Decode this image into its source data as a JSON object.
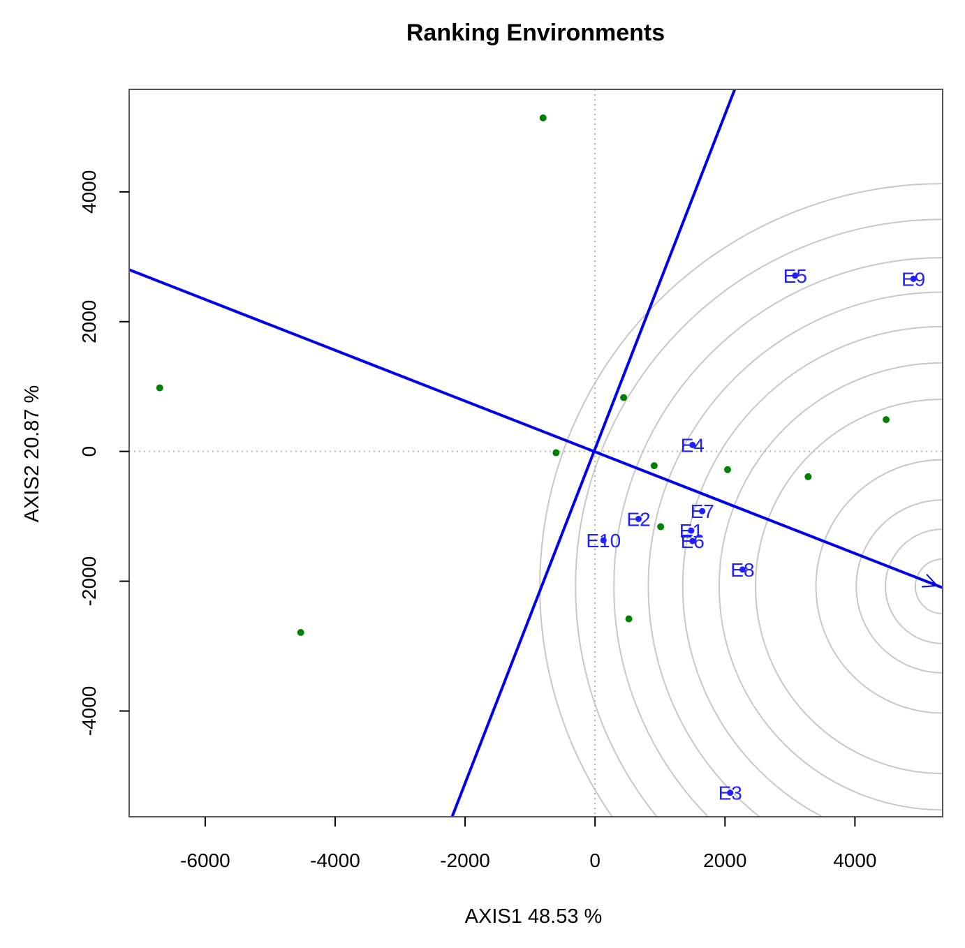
{
  "chart_data": {
    "type": "scatter",
    "title": "Ranking Environments",
    "xlabel": "AXIS1 48.53 %",
    "ylabel": "AXIS2 20.87 %",
    "xlim": [
      -7170,
      5350
    ],
    "ylim": [
      -5630,
      5580
    ],
    "xticks": [
      -6000,
      -4000,
      -2000,
      0,
      2000,
      4000
    ],
    "yticks": [
      -4000,
      -2000,
      0,
      2000,
      4000
    ],
    "tick_labels_x": [
      "-6000",
      "-4000",
      "-2000",
      "0",
      "2000",
      "4000"
    ],
    "tick_labels_y": [
      "-4000",
      "-2000",
      "0",
      "2000",
      "4000"
    ],
    "reference_lines": {
      "x": 0,
      "y": 0,
      "style": "dotted"
    },
    "grid": false,
    "environments": [
      {
        "label": "E1",
        "x": 1480,
        "y": -1220
      },
      {
        "label": "E2",
        "x": 670,
        "y": -1040
      },
      {
        "label": "E3",
        "x": 2080,
        "y": -5260
      },
      {
        "label": "E4",
        "x": 1500,
        "y": 100
      },
      {
        "label": "E5",
        "x": 3080,
        "y": 2710
      },
      {
        "label": "E6",
        "x": 1500,
        "y": -1380
      },
      {
        "label": "E7",
        "x": 1650,
        "y": -920
      },
      {
        "label": "E8",
        "x": 2270,
        "y": -1820
      },
      {
        "label": "E9",
        "x": 4900,
        "y": 2660
      },
      {
        "label": "E10",
        "x": 130,
        "y": -1370
      }
    ],
    "genotypes": [
      {
        "x": -800,
        "y": 5140
      },
      {
        "x": -6700,
        "y": 980
      },
      {
        "x": 440,
        "y": 830
      },
      {
        "x": -600,
        "y": -20
      },
      {
        "x": 910,
        "y": -220
      },
      {
        "x": 2040,
        "y": -280
      },
      {
        "x": 3280,
        "y": -390
      },
      {
        "x": 4480,
        "y": 490
      },
      {
        "x": 1010,
        "y": -1160
      },
      {
        "x": 520,
        "y": -2580
      },
      {
        "x": -4530,
        "y": -2790
      }
    ],
    "aec_axis": {
      "from": [
        -7170,
        2800
      ],
      "to": [
        5350,
        -2100
      ],
      "arrow": true
    },
    "aec_ordinate": {
      "from": [
        -2200,
        -5630
      ],
      "to": [
        2150,
        5580
      ]
    },
    "ideal_point": {
      "x": 5350,
      "y": -2080
    },
    "circle_radii": [
      420,
      880,
      1330,
      1950,
      2880,
      3440,
      4000,
      4530,
      5060,
      5650,
      6200
    ],
    "colors": {
      "environment": "#1f1fff",
      "genotype": "#008000",
      "axis_line": "#0000ee",
      "circles": "#c8c8c8",
      "reference": "#b0b0b0"
    }
  }
}
